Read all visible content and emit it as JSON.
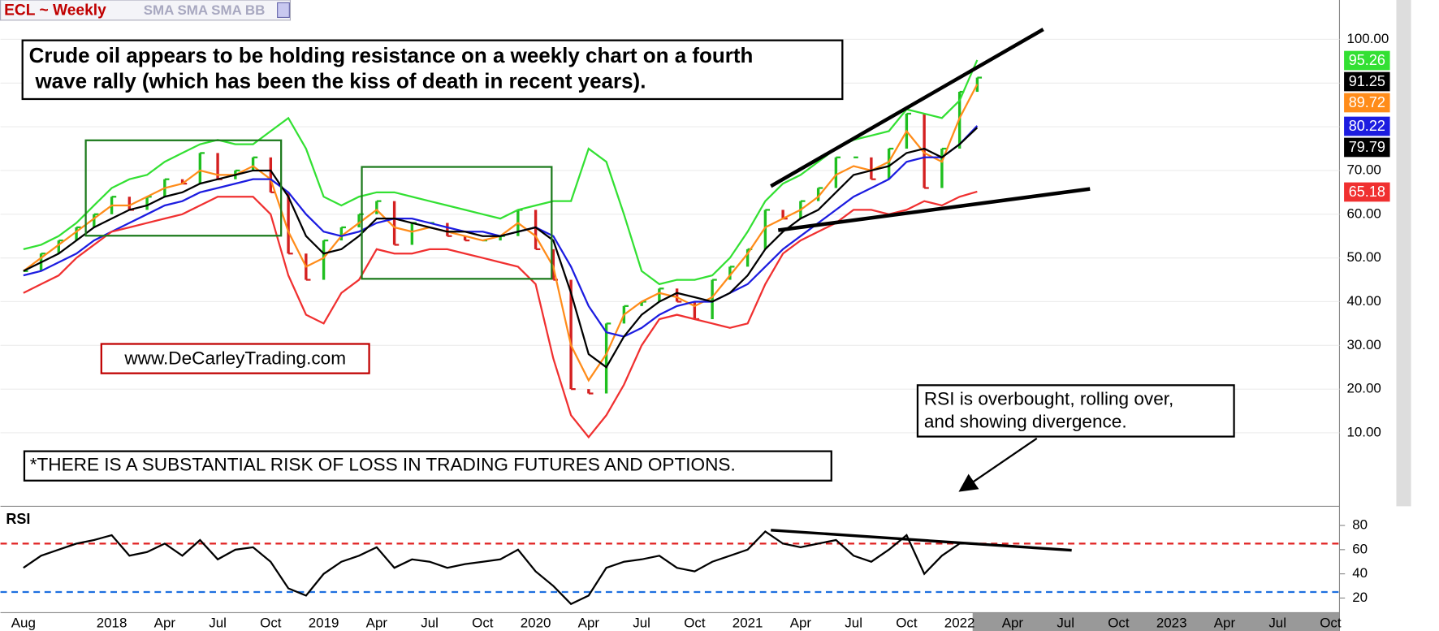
{
  "chart_data": {
    "type": "stock",
    "title": "ECL ~ Weekly",
    "subtitle": "SMA SMA SMA BB",
    "categories": [
      "Aug",
      null,
      null,
      null,
      null,
      "2018",
      null,
      null,
      "Apr",
      null,
      null,
      "Jul",
      null,
      null,
      "Oct",
      null,
      null,
      "2019",
      null,
      null,
      "Apr",
      null,
      null,
      "Jul",
      null,
      null,
      "Oct",
      null,
      null,
      "2020",
      null,
      null,
      "Apr",
      null,
      null,
      "Jul",
      null,
      null,
      "Oct",
      null,
      null,
      "2021",
      null,
      null,
      "Apr",
      null,
      null,
      "Jul",
      null,
      null,
      "Oct",
      null,
      null,
      "2022",
      null,
      null,
      "Apr",
      null,
      null,
      "Jul",
      null,
      null,
      "Oct",
      null,
      null,
      "2023",
      null,
      null,
      "Apr",
      null,
      null,
      "Jul",
      null,
      null,
      "Oct"
    ],
    "ylim": [
      -6.8,
      109
    ],
    "yticks": [
      {
        "value": 10,
        "label": "10.00"
      },
      {
        "value": 20,
        "label": "20.00"
      },
      {
        "value": 30,
        "label": "30.00"
      },
      {
        "value": 40,
        "label": "40.00"
      },
      {
        "value": 50,
        "label": "50.00"
      },
      {
        "value": 60,
        "label": "60.00"
      },
      {
        "value": 70,
        "label": "70.00"
      },
      {
        "value": 80,
        "label": "80.00"
      },
      {
        "value": 90,
        "label": "90.00"
      },
      {
        "value": 100,
        "label": "100.00"
      }
    ],
    "grid": true,
    "series": [
      {
        "style": "bars",
        "color": "#1fbf1f",
        "down_color": "#d42020",
        "label_color": "#000000",
        "values": [
          47,
          51,
          54,
          57,
          60,
          64,
          61,
          64,
          68,
          67,
          74,
          68,
          70,
          73,
          65,
          51,
          45,
          54,
          57,
          60,
          63,
          53,
          58,
          58,
          55,
          54,
          54,
          55,
          61,
          52,
          45,
          20,
          19,
          35,
          39,
          40,
          43,
          40,
          36,
          45,
          48,
          52,
          61,
          59,
          63,
          66,
          73,
          73,
          68,
          75,
          83,
          66,
          75,
          88,
          91.25,
          null,
          null,
          null,
          null,
          null,
          null,
          null,
          null,
          null,
          null,
          null,
          null,
          null,
          null,
          null,
          null,
          null,
          null,
          null,
          null
        ]
      },
      {
        "style": "line",
        "color": "#33e033",
        "label_color": "#33e033",
        "values": [
          52,
          53,
          55,
          58,
          62,
          66,
          68,
          69,
          72,
          74,
          76,
          77,
          76,
          76,
          79,
          82,
          75,
          64,
          62,
          64,
          65,
          65,
          64,
          63,
          62,
          61,
          60,
          59,
          61,
          62,
          63,
          63,
          75,
          72,
          60,
          47,
          44,
          45,
          45,
          46,
          50,
          56,
          63,
          67,
          69,
          72,
          75,
          77,
          78,
          79,
          84,
          83,
          82,
          86,
          95.26,
          null,
          null,
          null,
          null,
          null,
          null,
          null,
          null,
          null,
          null,
          null,
          null,
          null,
          null,
          null,
          null,
          null,
          null,
          null,
          null
        ]
      },
      {
        "style": "line",
        "color": "#ff8c1a",
        "label_color": "#ff8c1a",
        "values": [
          47,
          50,
          53,
          56,
          59,
          62,
          62,
          64,
          66,
          67,
          70,
          69,
          69,
          71,
          68,
          56,
          48,
          50,
          55,
          58,
          61,
          57,
          56,
          57,
          56,
          55,
          54,
          55,
          58,
          55,
          48,
          30,
          22,
          28,
          37,
          40,
          42,
          41,
          39,
          41,
          46,
          51,
          57,
          59,
          61,
          64,
          69,
          71,
          70,
          72,
          79,
          74,
          72,
          82,
          89.72,
          null,
          null,
          null,
          null,
          null,
          null,
          null,
          null,
          null,
          null,
          null,
          null,
          null,
          null,
          null,
          null,
          null,
          null,
          null,
          null
        ]
      },
      {
        "style": "line",
        "color": "#1c1ce0",
        "label_color": "#1c1ce0",
        "values": [
          46,
          47,
          49,
          51,
          54,
          56,
          58,
          60,
          62,
          63,
          65,
          66,
          67,
          68,
          68,
          65,
          60,
          56,
          55,
          56,
          58,
          59,
          59,
          58,
          57,
          56,
          56,
          55,
          56,
          57,
          55,
          48,
          39,
          33,
          32,
          34,
          37,
          39,
          40,
          40,
          42,
          44,
          48,
          52,
          55,
          58,
          61,
          64,
          66,
          68,
          72,
          73,
          73,
          76,
          80.22,
          null,
          null,
          null,
          null,
          null,
          null,
          null,
          null,
          null,
          null,
          null,
          null,
          null,
          null,
          null,
          null,
          null,
          null,
          null,
          null
        ]
      },
      {
        "style": "line",
        "color": "#000000",
        "label_color": "#000000",
        "values": [
          47,
          49,
          51,
          54,
          57,
          59,
          61,
          62,
          64,
          65,
          67,
          68,
          69,
          70,
          70,
          64,
          55,
          51,
          52,
          55,
          59,
          59,
          58,
          57,
          56,
          56,
          55,
          55,
          56,
          57,
          54,
          42,
          28,
          25,
          32,
          37,
          40,
          42,
          41,
          40,
          42,
          46,
          52,
          56,
          59,
          61,
          65,
          69,
          70,
          71,
          74,
          75,
          73,
          76,
          79.79,
          null,
          null,
          null,
          null,
          null,
          null,
          null,
          null,
          null,
          null,
          null,
          null,
          null,
          null,
          null,
          null,
          null,
          null,
          null,
          null
        ]
      },
      {
        "style": "line",
        "color": "#f03030",
        "label_color": "#f03030",
        "values": [
          42,
          44,
          46,
          50,
          53,
          56,
          57,
          58,
          59,
          60,
          62,
          64,
          64,
          64,
          60,
          46,
          37,
          35,
          42,
          45,
          52,
          51,
          51,
          52,
          52,
          51,
          50,
          49,
          48,
          44,
          27,
          14,
          9,
          14,
          21,
          30,
          36,
          37,
          36,
          35,
          34,
          35,
          44,
          51,
          54,
          56,
          58,
          61,
          61,
          60,
          61,
          63,
          62,
          64,
          65.18,
          null,
          null,
          null,
          null,
          null,
          null,
          null,
          null,
          null,
          null,
          null,
          null,
          null,
          null,
          null,
          null,
          null,
          null,
          null,
          null
        ]
      }
    ],
    "rsi": {
      "label": "RSI",
      "color": "#000000",
      "ylim": [
        7.9,
        93.6
      ],
      "yticks": [
        20,
        40,
        60,
        80
      ],
      "overbought": 65,
      "overbought_color": "#e02020",
      "oversold": 25,
      "oversold_color": "#1e6fe0",
      "values": [
        45,
        55,
        60,
        65,
        68,
        72,
        55,
        58,
        65,
        55,
        68,
        52,
        60,
        62,
        50,
        28,
        22,
        40,
        50,
        55,
        62,
        45,
        52,
        50,
        45,
        48,
        50,
        52,
        60,
        42,
        30,
        15,
        22,
        45,
        50,
        52,
        55,
        45,
        42,
        50,
        55,
        60,
        75,
        65,
        62,
        65,
        68,
        55,
        50,
        60,
        72,
        40,
        55,
        65,
        65,
        null,
        null,
        null,
        null,
        null,
        null,
        null,
        null,
        null,
        null,
        null,
        null,
        null,
        null,
        null,
        null,
        null,
        null,
        null,
        null
      ]
    },
    "annotations": {
      "headline": [
        "Crude oil appears to be holding resistance on a weekly chart on a fourth",
        "wave rally (which has been the kiss of death in recent years)."
      ],
      "website": "www.DeCarleyTrading.com",
      "disclaimer": "*THERE IS A SUBSTANTIAL RISK OF LOSS IN TRADING FUTURES AND OPTIONS.",
      "rsi_note": [
        "RSI is overbought, rolling over,",
        "and showing divergence."
      ]
    }
  }
}
